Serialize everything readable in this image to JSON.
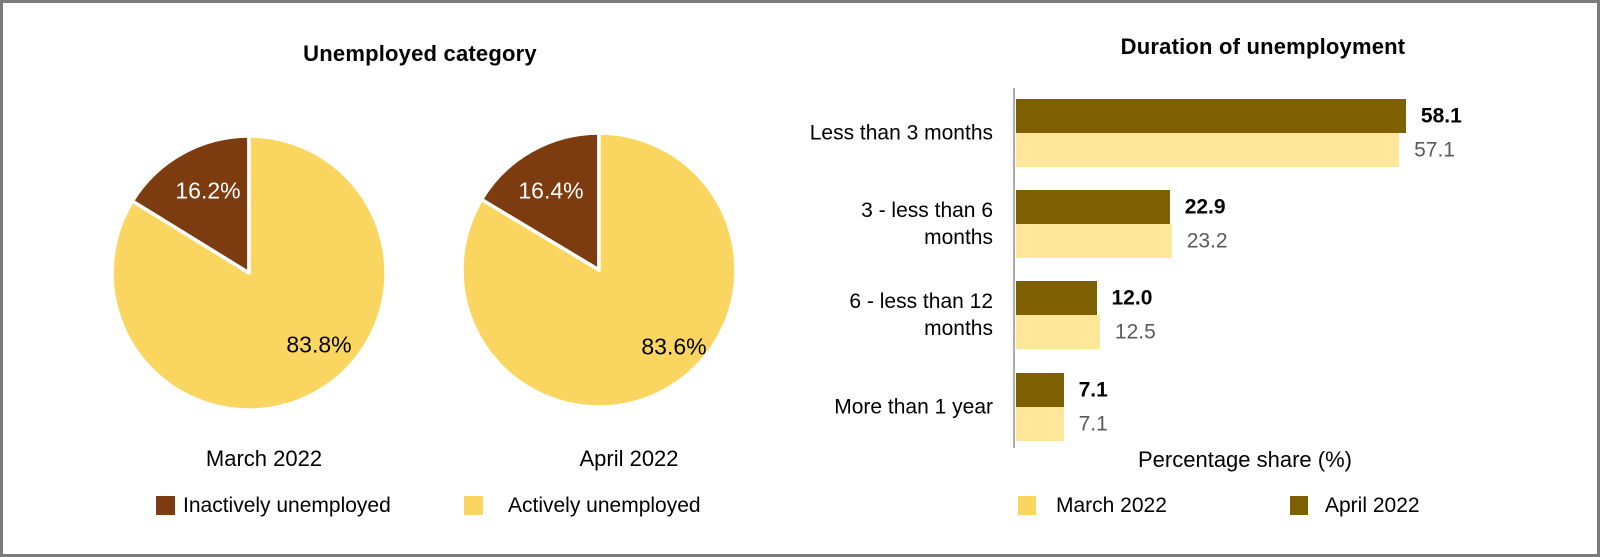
{
  "chart_data": [
    {
      "type": "pie",
      "title": "Unemployed category",
      "slice_names": [
        "Inactively unemployed",
        "Actively unemployed"
      ],
      "colors": [
        "#7D3C10",
        "#FAD55F"
      ],
      "slice_label_colors": [
        "#FFFFFF",
        "#000000"
      ],
      "pies": [
        {
          "caption": "March 2022",
          "values": [
            16.2,
            83.8
          ],
          "labels": [
            "16.2%",
            "83.8%"
          ]
        },
        {
          "caption": "April 2022",
          "values": [
            16.4,
            83.6
          ],
          "labels": [
            "16.4%",
            "83.6%"
          ]
        }
      ],
      "legend_position": "bottom",
      "legend": [
        {
          "label": "Inactively unemployed",
          "color": "#7D3C10"
        },
        {
          "label": "Actively unemployed",
          "color": "#FAD55F"
        }
      ]
    },
    {
      "type": "bar",
      "orientation": "horizontal",
      "title": "Duration of unemployment",
      "categories": [
        "Less than 3 months",
        "3 - less than 6 months",
        "6 - less than 12 months",
        "More than 1 year"
      ],
      "category_lines": [
        [
          "Less than 3 months"
        ],
        [
          "3 - less than 6",
          "months"
        ],
        [
          "6 - less than 12",
          "months"
        ],
        [
          "More than 1 year"
        ]
      ],
      "series": [
        {
          "name": "April 2022",
          "color": "#7F6000",
          "values": [
            58.1,
            22.9,
            12.0,
            7.1
          ],
          "labels": [
            "58.1",
            "22.9",
            "12.0",
            "7.1"
          ],
          "label_color": "#000000",
          "label_bold": true
        },
        {
          "name": "March 2022",
          "color": "#FFE699",
          "values": [
            57.1,
            23.2,
            12.5,
            7.1
          ],
          "labels": [
            "57.1",
            "23.2",
            "12.5",
            "7.1"
          ],
          "label_color": "#595959",
          "label_bold": false
        }
      ],
      "xlabel": "Percentage share (%)",
      "x_axis": {
        "min": 0,
        "max": 87,
        "gridlines": false,
        "ticks_visible": false
      },
      "legend_position": "bottom",
      "legend": [
        {
          "label": "March 2022",
          "color": "#FAD55F"
        },
        {
          "label": "April 2022",
          "color": "#7F6000"
        }
      ]
    }
  ]
}
